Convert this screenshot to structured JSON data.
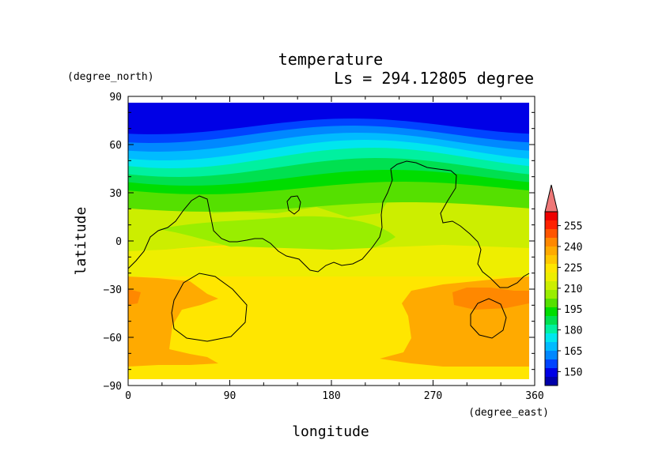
{
  "chart_data": {
    "type": "heatmap",
    "title": "temperature",
    "subtitle": "Ls = 294.12805 degree",
    "xlabel": "longitude",
    "ylabel": "latitude",
    "xunits": "(degree_east)",
    "yunits": "(degree_north)",
    "xlim": [
      0,
      360
    ],
    "ylim": [
      -90,
      90
    ],
    "xticks": [
      0,
      90,
      180,
      270,
      360
    ],
    "xtick_labels": [
      "0",
      "90",
      "180",
      "270",
      "360"
    ],
    "yticks": [
      -90,
      -60,
      -30,
      0,
      30,
      60,
      90
    ],
    "ytick_labels": [
      "−90",
      "−60",
      "−30",
      "0",
      "30",
      "60",
      "90"
    ],
    "colorbar_levels": [
      150,
      165,
      180,
      195,
      210,
      225,
      240,
      255
    ],
    "colorbar_labels": [
      "150",
      "165",
      "180",
      "195",
      "210",
      "225",
      "240",
      "255"
    ],
    "colorbar_colors": [
      "#0000aa",
      "#0000e6",
      "#0044ff",
      "#0088ff",
      "#00bbff",
      "#00e6ee",
      "#00f0a0",
      "#00e050",
      "#00dd00",
      "#55e000",
      "#99ee00",
      "#ccee00",
      "#eeee00",
      "#ffe600",
      "#ffc800",
      "#ffaa00",
      "#ff8800",
      "#ff5500",
      "#ff2200",
      "#ee0000"
    ],
    "colorbar_extend_color": "#ee7777",
    "band_colors": {
      "south_polar_edge": "#ffe600",
      "south_warm": "#ffaa00",
      "south_warmest": "#ff8800",
      "midlat_south": "#ffe600",
      "subtropic": "#eeee00",
      "tropics": "#ccee00",
      "tropics_green": "#99ee00",
      "north_band1": "#55e000",
      "north_band2": "#00dd00",
      "north_band3": "#00e050",
      "north_band4": "#00f0a0",
      "north_band5": "#00e6ee",
      "north_band6": "#00bbff",
      "north_band7": "#0088ff",
      "north_band8": "#0044ff",
      "north_polar": "#0000e6"
    }
  }
}
